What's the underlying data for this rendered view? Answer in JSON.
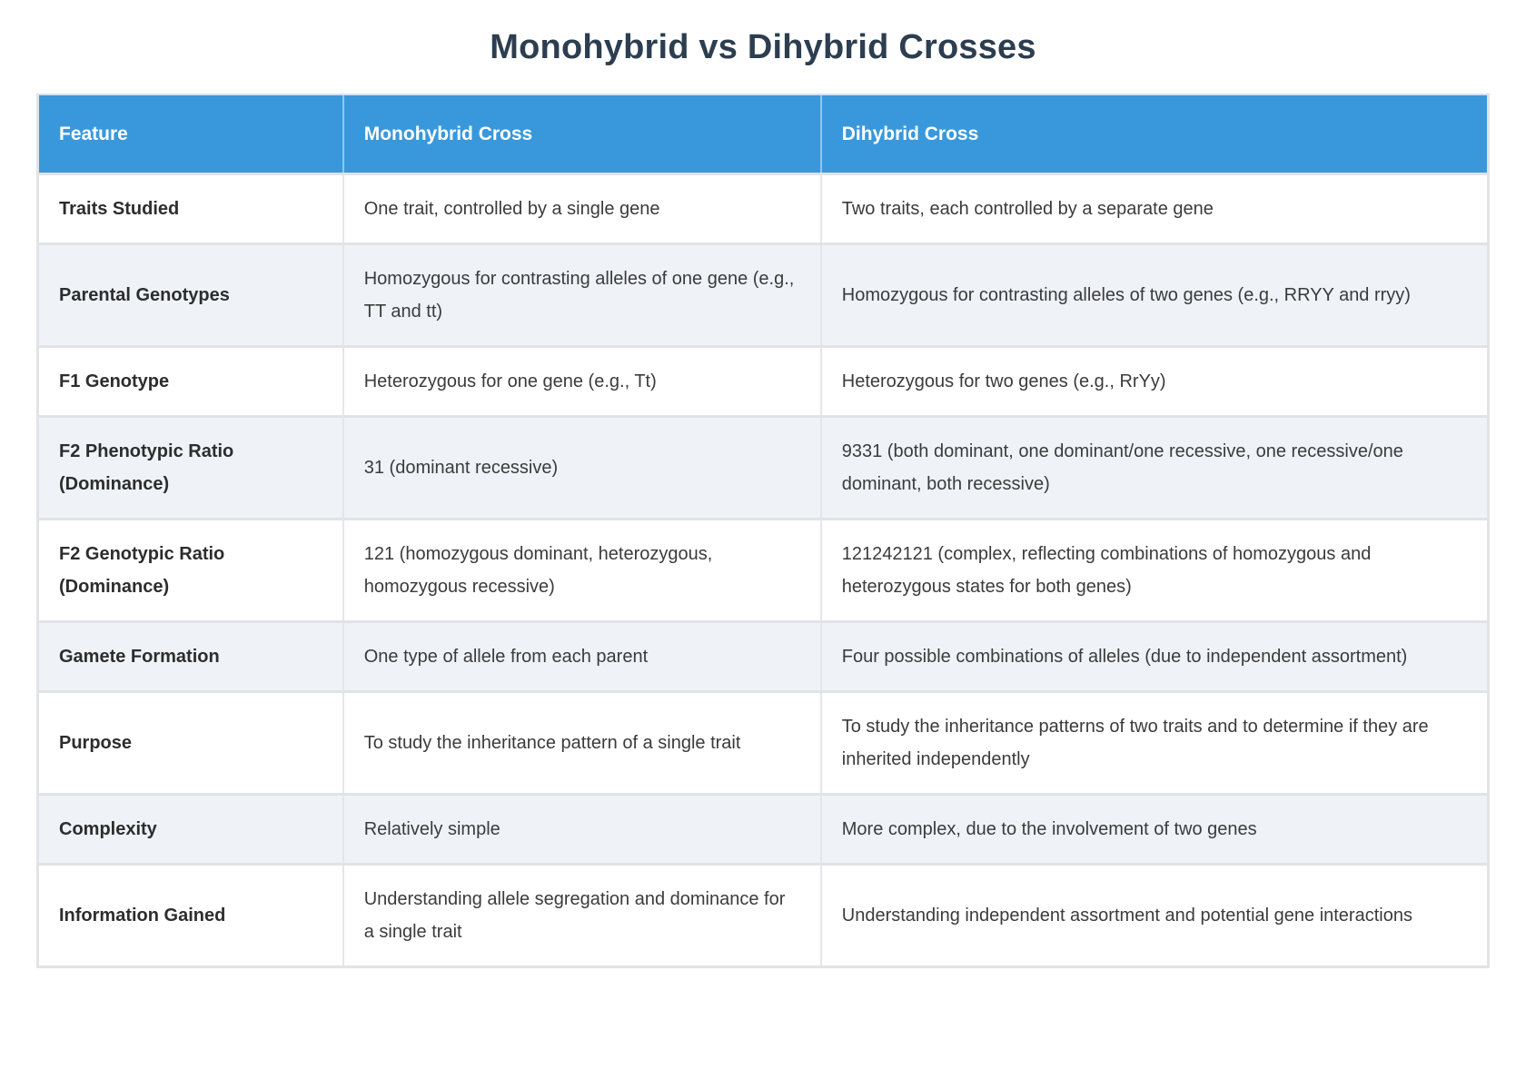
{
  "page": {
    "title": "Monohybrid vs Dihybrid Crosses"
  },
  "colors": {
    "header_bg": "#3998db",
    "header_text": "#ffffff",
    "title_text": "#2c3e50",
    "row_alt_bg": "#eff3f8",
    "row_bg": "#ffffff",
    "border": "#e1e3e6",
    "body_text": "#3b3b3b"
  },
  "table": {
    "headers": [
      "Feature",
      "Monohybrid Cross",
      "Dihybrid Cross"
    ],
    "rows": [
      {
        "feature": "Traits Studied",
        "monohybrid": "One trait, controlled by a single gene",
        "dihybrid": "Two traits, each controlled by a separate gene"
      },
      {
        "feature": "Parental Genotypes",
        "monohybrid": "Homozygous for contrasting alleles of one gene (e.g., TT and tt)",
        "dihybrid": "Homozygous for contrasting alleles of two genes (e.g., RRYY and rryy)"
      },
      {
        "feature": "F1 Genotype",
        "monohybrid": "Heterozygous for one gene (e.g., Tt)",
        "dihybrid": "Heterozygous for two genes (e.g., RrYy)"
      },
      {
        "feature": "F2 Phenotypic Ratio (Dominance)",
        "monohybrid": "31 (dominant recessive)",
        "dihybrid": "9331 (both dominant, one dominant/one recessive, one recessive/one dominant, both recessive)"
      },
      {
        "feature": "F2 Genotypic Ratio (Dominance)",
        "monohybrid": "121 (homozygous dominant, heterozygous, homozygous recessive)",
        "dihybrid": "121242121 (complex, reflecting combinations of homozygous and heterozygous states for both genes)"
      },
      {
        "feature": "Gamete Formation",
        "monohybrid": "One type of allele from each parent",
        "dihybrid": "Four possible combinations of alleles (due to independent assortment)"
      },
      {
        "feature": "Purpose",
        "monohybrid": "To study the inheritance pattern of a single trait",
        "dihybrid": "To study the inheritance patterns of two traits and to determine if they are inherited independently"
      },
      {
        "feature": "Complexity",
        "monohybrid": "Relatively simple",
        "dihybrid": "More complex, due to the involvement of two genes"
      },
      {
        "feature": "Information Gained",
        "monohybrid": "Understanding allele segregation and dominance for a single trait",
        "dihybrid": "Understanding independent assortment and potential gene interactions"
      }
    ]
  }
}
